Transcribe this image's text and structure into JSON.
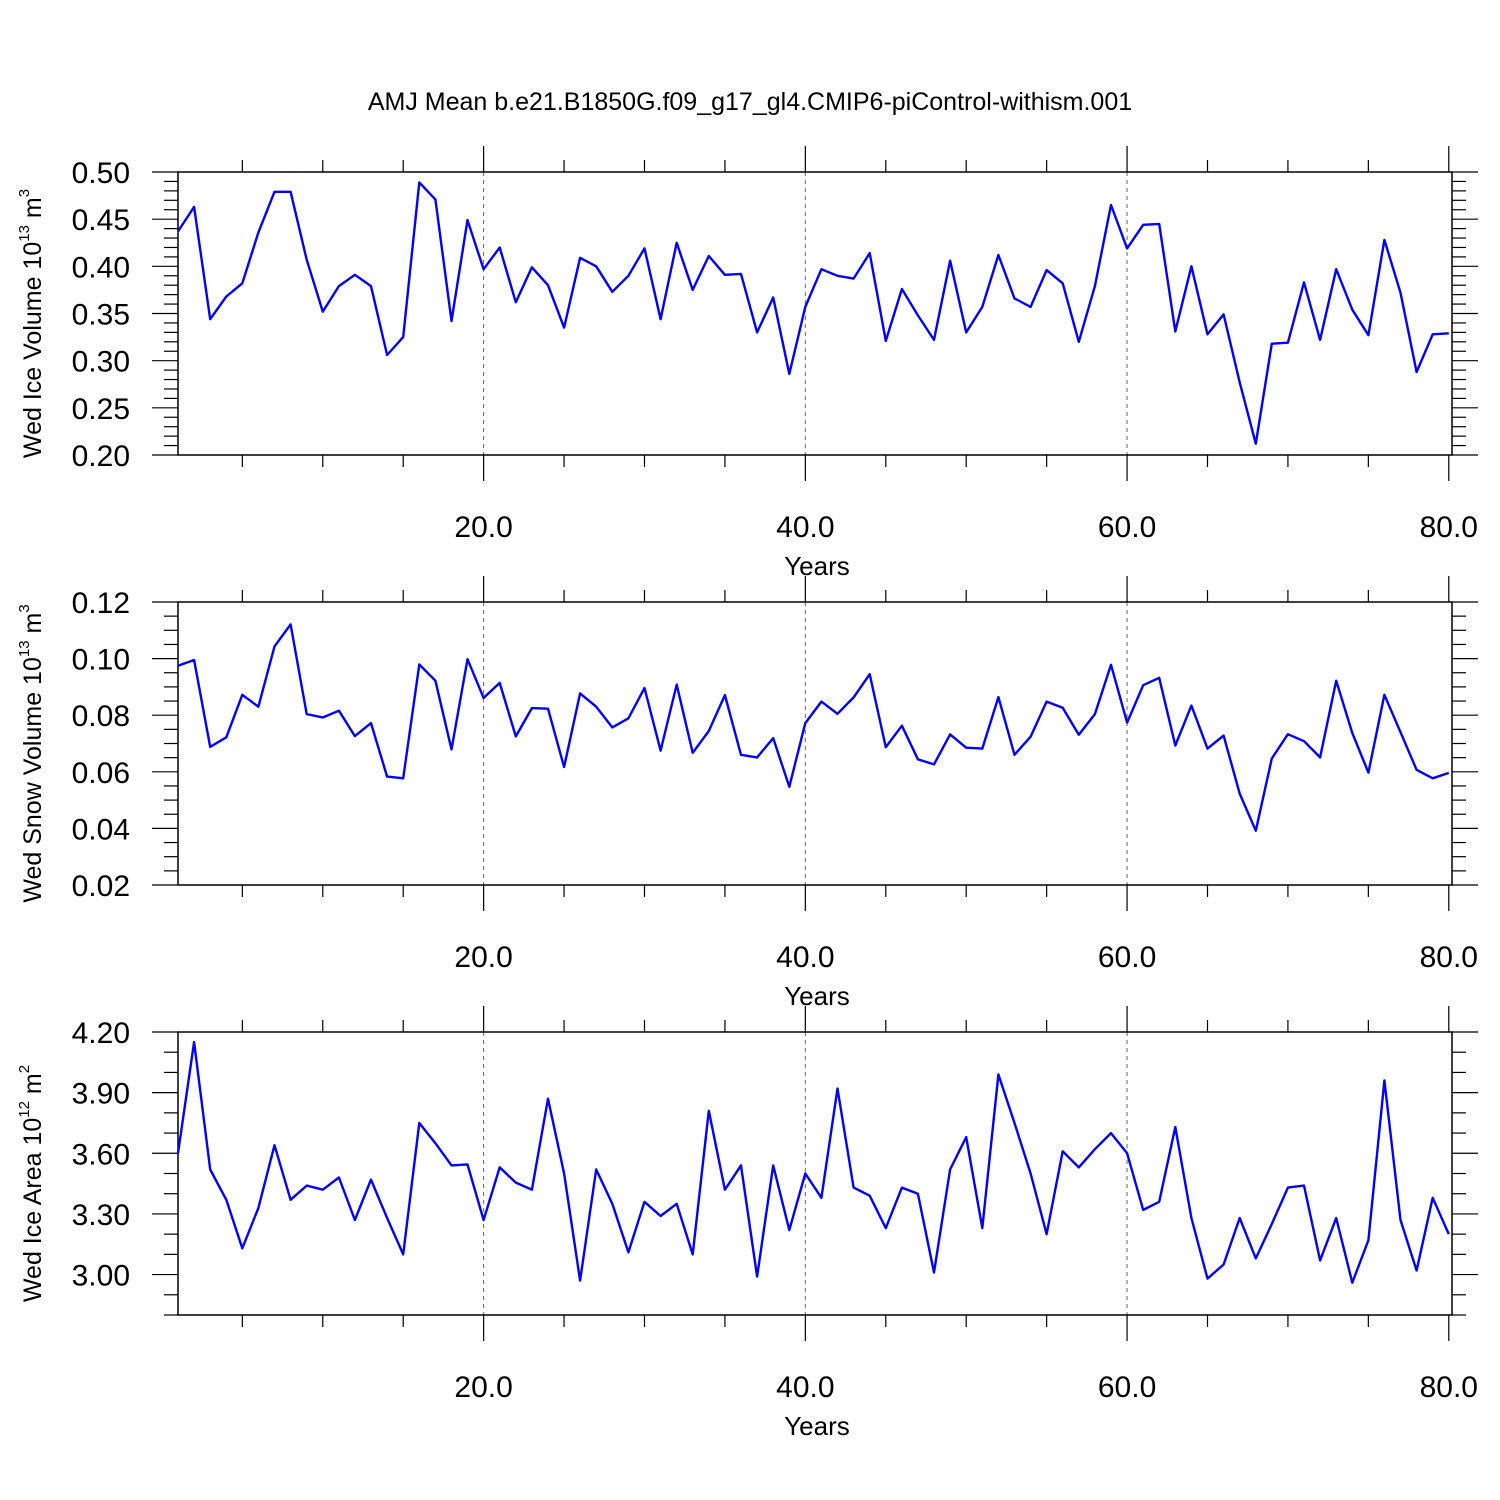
{
  "title": "AMJ Mean b.e21.B1850G.f09_g17_gl4.CMIP6-piControl-withism.001",
  "colors": {
    "series": "#0000ff",
    "axes": "#000000",
    "grid": "#666666"
  },
  "chart_data": [
    {
      "type": "line",
      "ylabel": {
        "main": "Wed Ice Volume 10",
        "exp": "13",
        "unit": " m",
        "unit_exp": "3"
      },
      "xlabel": "Years",
      "xlim": [
        1,
        80.2
      ],
      "ylim": [
        0.2,
        0.5
      ],
      "yticks": [
        0.2,
        0.25,
        0.3,
        0.35,
        0.4,
        0.45,
        0.5
      ],
      "ytick_labels": [
        "0.20",
        "0.25",
        "0.30",
        "0.35",
        "0.40",
        "0.45",
        "0.50"
      ],
      "yminor_step": 0.01,
      "xticks": [
        20,
        40,
        60,
        80
      ],
      "xtick_labels": [
        "20.0",
        "40.0",
        "60.0",
        "80.0"
      ],
      "xminor_step": 5,
      "grid": "vertical dashed at major x ticks",
      "x_start": 1,
      "values": [
        0.437,
        0.463,
        0.344,
        0.368,
        0.382,
        0.436,
        0.479,
        0.479,
        0.407,
        0.352,
        0.379,
        0.391,
        0.379,
        0.306,
        0.325,
        0.489,
        0.471,
        0.342,
        0.449,
        0.397,
        0.42,
        0.362,
        0.399,
        0.38,
        0.335,
        0.409,
        0.4,
        0.373,
        0.39,
        0.419,
        0.344,
        0.425,
        0.375,
        0.411,
        0.391,
        0.392,
        0.33,
        0.367,
        0.286,
        0.357,
        0.397,
        0.39,
        0.387,
        0.414,
        0.321,
        0.376,
        0.348,
        0.322,
        0.406,
        0.33,
        0.357,
        0.412,
        0.366,
        0.357,
        0.396,
        0.382,
        0.32,
        0.379,
        0.465,
        0.419,
        0.444,
        0.445,
        0.331,
        0.4,
        0.328,
        0.349,
        0.277,
        0.212,
        0.318,
        0.319,
        0.383,
        0.322,
        0.397,
        0.354,
        0.327,
        0.428,
        0.372,
        0.288,
        0.328,
        0.329
      ]
    },
    {
      "type": "line",
      "ylabel": {
        "main": "Wed Snow Volume 10",
        "exp": "13",
        "unit": " m",
        "unit_exp": "3"
      },
      "xlabel": "Years",
      "xlim": [
        1,
        80.2
      ],
      "ylim": [
        0.02,
        0.12
      ],
      "yticks": [
        0.02,
        0.04,
        0.06,
        0.08,
        0.1,
        0.12
      ],
      "ytick_labels": [
        "0.02",
        "0.04",
        "0.06",
        "0.08",
        "0.10",
        "0.12"
      ],
      "yminor_step": 0.005,
      "xticks": [
        20,
        40,
        60,
        80
      ],
      "xtick_labels": [
        "20.0",
        "40.0",
        "60.0",
        "80.0"
      ],
      "xminor_step": 5,
      "grid": "vertical dashed at major x ticks",
      "x_start": 1,
      "values": [
        0.0975,
        0.0995,
        0.0688,
        0.0722,
        0.0872,
        0.083,
        0.1043,
        0.1121,
        0.0804,
        0.0792,
        0.0816,
        0.0726,
        0.0772,
        0.0583,
        0.0577,
        0.0979,
        0.0922,
        0.0679,
        0.0998,
        0.0861,
        0.0914,
        0.0725,
        0.0825,
        0.0823,
        0.0617,
        0.0877,
        0.083,
        0.0757,
        0.0789,
        0.0896,
        0.0675,
        0.0908,
        0.0667,
        0.0744,
        0.0871,
        0.066,
        0.0651,
        0.0719,
        0.0547,
        0.0772,
        0.0848,
        0.0805,
        0.0863,
        0.0945,
        0.0687,
        0.0763,
        0.0644,
        0.0626,
        0.0732,
        0.0685,
        0.0682,
        0.0864,
        0.066,
        0.0724,
        0.0848,
        0.0826,
        0.0731,
        0.0804,
        0.0978,
        0.0774,
        0.0906,
        0.0932,
        0.0693,
        0.0834,
        0.0682,
        0.0728,
        0.0523,
        0.0392,
        0.0647,
        0.0733,
        0.0708,
        0.0651,
        0.0922,
        0.0737,
        0.0597,
        0.0872,
        0.074,
        0.0607,
        0.0577,
        0.0596
      ]
    },
    {
      "type": "line",
      "ylabel": {
        "main": "Wed Ice Area 10",
        "exp": "12",
        "unit": " m",
        "unit_exp": "2"
      },
      "xlabel": "Years",
      "xlim": [
        1,
        80.2
      ],
      "ylim": [
        2.8,
        4.2
      ],
      "yticks": [
        3.0,
        3.3,
        3.6,
        3.9,
        4.2
      ],
      "ytick_labels": [
        "3.00",
        "3.30",
        "3.60",
        "3.90",
        "4.20"
      ],
      "yminor_step": 0.1,
      "xticks": [
        20,
        40,
        60,
        80
      ],
      "xtick_labels": [
        "20.0",
        "40.0",
        "60.0",
        "80.0"
      ],
      "xminor_step": 5,
      "grid": "vertical dashed at major x ticks",
      "x_start": 1,
      "values": [
        3.6,
        4.15,
        3.52,
        3.37,
        3.13,
        3.33,
        3.64,
        3.37,
        3.44,
        3.42,
        3.48,
        3.27,
        3.47,
        3.28,
        3.1,
        3.75,
        3.65,
        3.54,
        3.545,
        3.27,
        3.53,
        3.455,
        3.42,
        3.87,
        3.5,
        2.97,
        3.52,
        3.35,
        3.11,
        3.36,
        3.29,
        3.35,
        3.1,
        3.81,
        3.42,
        3.54,
        2.99,
        3.54,
        3.22,
        3.5,
        3.38,
        3.92,
        3.43,
        3.39,
        3.23,
        3.43,
        3.4,
        3.01,
        3.52,
        3.68,
        3.23,
        3.99,
        3.75,
        3.5,
        3.2,
        3.61,
        3.53,
        3.62,
        3.7,
        3.6,
        3.32,
        3.36,
        3.73,
        3.28,
        2.98,
        3.05,
        3.28,
        3.08,
        3.25,
        3.43,
        3.44,
        3.07,
        3.28,
        2.96,
        3.17,
        3.96,
        3.27,
        3.02,
        3.38,
        3.2
      ]
    }
  ]
}
